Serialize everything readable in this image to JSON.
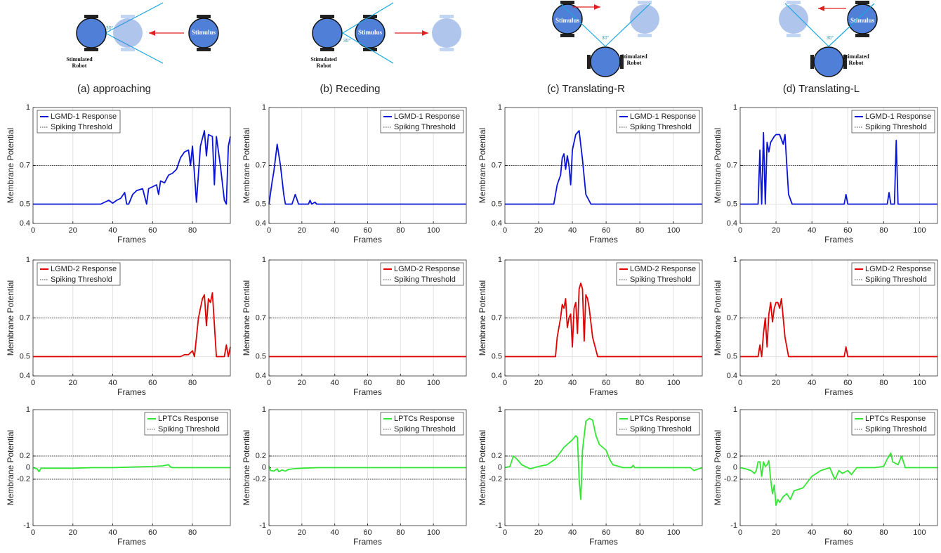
{
  "panels": [
    {
      "caption": "(a) approaching",
      "stimulus": "Stimulus",
      "robot": "Stimulated Robot",
      "angle": "30°"
    },
    {
      "caption": "(b) Receding",
      "stimulus": "Stimulus",
      "robot": "Stimulated Robot",
      "angle": "30°"
    },
    {
      "caption": "(c) Translating-R",
      "stimulus": "Stimulus",
      "robot": "Stimulated Robot",
      "angle": "30°"
    },
    {
      "caption": "(d) Translating-L",
      "stimulus": "Stimulus",
      "robot": "Stimulated Robot",
      "angle": "30°"
    }
  ],
  "chart_data": [
    {
      "type": "line",
      "x_label": "Frames",
      "y_label": "Membrane Potential",
      "xlim": [
        0,
        99
      ],
      "xticks": [
        0,
        20,
        40,
        60,
        80
      ],
      "ylim": [
        0.4,
        1
      ],
      "yticks": [
        0.4,
        0.5,
        0.7,
        1
      ],
      "grid": true,
      "legend": "upper left",
      "x": [
        0,
        34,
        36,
        38,
        40,
        42,
        44,
        46,
        47,
        48,
        50,
        52,
        55,
        57,
        58,
        60,
        62,
        63,
        64,
        66,
        68,
        70,
        72,
        74,
        76,
        78,
        79,
        80,
        82,
        84,
        86,
        87,
        88,
        90,
        91,
        92,
        94,
        96,
        97,
        98,
        99
      ],
      "series": [
        {
          "name": "LGMD-1 Response",
          "color": "#0a14d8",
          "values": [
            0.5,
            0.5,
            0.51,
            0.52,
            0.505,
            0.52,
            0.53,
            0.56,
            0.5,
            0.5,
            0.55,
            0.57,
            0.58,
            0.5,
            0.58,
            0.59,
            0.6,
            0.55,
            0.62,
            0.61,
            0.65,
            0.66,
            0.68,
            0.74,
            0.77,
            0.78,
            0.7,
            0.8,
            0.51,
            0.8,
            0.88,
            0.75,
            0.86,
            0.85,
            0.6,
            0.85,
            0.7,
            0.52,
            0.5,
            0.8,
            0.85
          ]
        }
      ],
      "threshold": {
        "name": "Spiking Threshold",
        "color": "#000000",
        "values": [
          0.7
        ]
      }
    },
    {
      "type": "line",
      "x_label": "Frames",
      "y_label": "Membrane Potential",
      "xlim": [
        0,
        120
      ],
      "xticks": [
        0,
        20,
        40,
        60,
        80,
        100
      ],
      "ylim": [
        0.4,
        1
      ],
      "yticks": [
        0.4,
        0.5,
        0.7,
        1
      ],
      "grid": true,
      "legend": "upper right",
      "x": [
        0,
        2,
        3,
        5,
        7,
        9,
        10,
        14,
        16,
        18,
        20,
        24,
        25,
        26,
        28,
        29,
        30,
        120
      ],
      "series": [
        {
          "name": "LGMD-1 Response",
          "color": "#0a14d8",
          "values": [
            0.5,
            0.62,
            0.67,
            0.81,
            0.7,
            0.55,
            0.5,
            0.5,
            0.55,
            0.5,
            0.5,
            0.5,
            0.52,
            0.5,
            0.51,
            0.5,
            0.5,
            0.5
          ]
        }
      ],
      "threshold": {
        "name": "Spiking Threshold",
        "color": "#000000",
        "values": [
          0.7
        ]
      }
    },
    {
      "type": "line",
      "x_label": "Frames",
      "y_label": "Membrane Potential",
      "xlim": [
        0,
        117
      ],
      "xticks": [
        0,
        20,
        40,
        60,
        80,
        100
      ],
      "ylim": [
        0.4,
        1
      ],
      "yticks": [
        0.4,
        0.5,
        0.7,
        1
      ],
      "grid": true,
      "legend": "upper right",
      "x": [
        0,
        29,
        31,
        33,
        34,
        35,
        36,
        37,
        38,
        39,
        40,
        41,
        42,
        44,
        46,
        48,
        51,
        117
      ],
      "series": [
        {
          "name": "LGMD-1 Response",
          "color": "#0a14d8",
          "values": [
            0.5,
            0.5,
            0.6,
            0.65,
            0.74,
            0.76,
            0.68,
            0.75,
            0.7,
            0.6,
            0.78,
            0.82,
            0.86,
            0.88,
            0.73,
            0.55,
            0.5,
            0.5
          ]
        }
      ],
      "threshold": {
        "name": "Spiking Threshold",
        "color": "#000000",
        "values": [
          0.7
        ]
      }
    },
    {
      "type": "line",
      "x_label": "Frames",
      "y_label": "Membrane Potential",
      "xlim": [
        0,
        110
      ],
      "xticks": [
        0,
        20,
        40,
        60,
        80,
        100
      ],
      "ylim": [
        0.4,
        1
      ],
      "yticks": [
        0.4,
        0.5,
        0.7,
        1
      ],
      "grid": true,
      "legend": "upper right",
      "x": [
        0,
        10,
        11,
        12,
        13,
        14,
        15,
        16,
        17,
        19,
        20,
        21,
        22,
        24,
        25,
        26,
        27,
        29,
        58,
        59,
        60,
        82,
        83,
        84,
        86,
        87,
        88,
        110
      ],
      "series": [
        {
          "name": "LGMD-1 Response",
          "color": "#0a14d8",
          "values": [
            0.5,
            0.5,
            0.78,
            0.5,
            0.87,
            0.5,
            0.82,
            0.77,
            0.82,
            0.85,
            0.86,
            0.86,
            0.86,
            0.81,
            0.86,
            0.7,
            0.55,
            0.5,
            0.5,
            0.55,
            0.5,
            0.5,
            0.56,
            0.5,
            0.5,
            0.83,
            0.5,
            0.5
          ]
        }
      ],
      "threshold": {
        "name": "Spiking Threshold",
        "color": "#000000",
        "values": [
          0.7
        ]
      }
    },
    {
      "type": "line",
      "x_label": "Frames",
      "y_label": "Membrane Potential",
      "xlim": [
        0,
        99
      ],
      "xticks": [
        0,
        20,
        40,
        60,
        80
      ],
      "ylim": [
        0.4,
        1
      ],
      "yticks": [
        0.4,
        0.5,
        0.7,
        1
      ],
      "grid": true,
      "legend": "upper left",
      "x": [
        0,
        74,
        76,
        78,
        80,
        81,
        83,
        85,
        86,
        87,
        88,
        89,
        90,
        92,
        94,
        96,
        97,
        98,
        99
      ],
      "series": [
        {
          "name": "LGMD-2 Response",
          "color": "#e00000",
          "values": [
            0.5,
            0.5,
            0.51,
            0.51,
            0.53,
            0.5,
            0.7,
            0.8,
            0.82,
            0.66,
            0.8,
            0.78,
            0.83,
            0.5,
            0.5,
            0.5,
            0.56,
            0.5,
            0.55
          ]
        }
      ],
      "threshold": {
        "name": "Spiking Threshold",
        "color": "#000000",
        "values": [
          0.7
        ]
      }
    },
    {
      "type": "line",
      "x_label": "Frames",
      "y_label": "Membrane Potential",
      "xlim": [
        0,
        120
      ],
      "xticks": [
        0,
        20,
        40,
        60,
        80,
        100
      ],
      "ylim": [
        0.4,
        1
      ],
      "yticks": [
        0.4,
        0.5,
        0.7,
        1
      ],
      "grid": true,
      "legend": "upper right",
      "x": [
        0,
        120
      ],
      "series": [
        {
          "name": "LGMD-2 Response",
          "color": "#e00000",
          "values": [
            0.5,
            0.5
          ]
        }
      ],
      "threshold": {
        "name": "Spiking Threshold",
        "color": "#000000",
        "values": [
          0.7
        ]
      }
    },
    {
      "type": "line",
      "x_label": "Frames",
      "y_label": "Membrane Potential",
      "xlim": [
        0,
        117
      ],
      "xticks": [
        0,
        20,
        40,
        60,
        80,
        100
      ],
      "ylim": [
        0.4,
        1
      ],
      "yticks": [
        0.4,
        0.5,
        0.7,
        1
      ],
      "grid": true,
      "legend": "upper right",
      "x": [
        0,
        30,
        31,
        33,
        34,
        35,
        36,
        37,
        38,
        39,
        40,
        41,
        42,
        43,
        44,
        45,
        46,
        47,
        48,
        49,
        50,
        52,
        55,
        117
      ],
      "series": [
        {
          "name": "LGMD-2 Response",
          "color": "#e00000",
          "values": [
            0.5,
            0.5,
            0.6,
            0.7,
            0.77,
            0.75,
            0.8,
            0.65,
            0.7,
            0.72,
            0.55,
            0.75,
            0.78,
            0.62,
            0.85,
            0.88,
            0.85,
            0.58,
            0.82,
            0.8,
            0.75,
            0.6,
            0.5,
            0.5
          ]
        }
      ],
      "threshold": {
        "name": "Spiking Threshold",
        "color": "#000000",
        "values": [
          0.7
        ]
      }
    },
    {
      "type": "line",
      "x_label": "Frames",
      "y_label": "Membrane Potential",
      "xlim": [
        0,
        110
      ],
      "xticks": [
        0,
        20,
        40,
        60,
        80,
        100
      ],
      "ylim": [
        0.4,
        1
      ],
      "yticks": [
        0.4,
        0.5,
        0.7,
        1
      ],
      "grid": true,
      "legend": "upper right",
      "x": [
        0,
        10,
        11,
        12,
        13,
        14,
        15,
        16,
        17,
        18,
        19,
        20,
        21,
        22,
        23,
        24,
        25,
        27,
        58,
        59,
        60,
        110
      ],
      "series": [
        {
          "name": "LGMD-2 Response",
          "color": "#e00000",
          "values": [
            0.5,
            0.5,
            0.56,
            0.5,
            0.62,
            0.7,
            0.55,
            0.72,
            0.78,
            0.68,
            0.75,
            0.78,
            0.78,
            0.75,
            0.8,
            0.7,
            0.6,
            0.5,
            0.5,
            0.55,
            0.5,
            0.5
          ]
        }
      ],
      "threshold": {
        "name": "Spiking Threshold",
        "color": "#000000",
        "values": [
          0.7
        ]
      }
    },
    {
      "type": "line",
      "x_label": "Frames",
      "y_label": "Membrane Potential",
      "xlim": [
        0,
        99
      ],
      "xticks": [
        0,
        20,
        40,
        60,
        80
      ],
      "ylim": [
        -1,
        1
      ],
      "yticks": [
        -1,
        -0.2,
        0,
        0.2,
        1
      ],
      "grid": true,
      "legend": "upper right",
      "x": [
        0,
        2,
        3,
        4,
        10,
        20,
        30,
        40,
        50,
        60,
        65,
        68,
        69,
        70,
        80,
        99
      ],
      "series": [
        {
          "name": "LPTCs Response",
          "color": "#33e633",
          "values": [
            0,
            -0.02,
            -0.07,
            -0.01,
            -0.01,
            -0.01,
            0,
            0,
            0.01,
            0.02,
            0.03,
            0.05,
            0.01,
            0,
            0,
            0
          ]
        }
      ],
      "threshold": {
        "name": "Spiking Threshold",
        "color": "#000000",
        "values": [
          0.2,
          -0.2
        ]
      }
    },
    {
      "type": "line",
      "x_label": "Frames",
      "y_label": "Membrane Potential",
      "xlim": [
        0,
        120
      ],
      "xticks": [
        0,
        20,
        40,
        60,
        80,
        100
      ],
      "ylim": [
        -1,
        1
      ],
      "yticks": [
        -1,
        -0.2,
        0,
        0.2,
        1
      ],
      "grid": true,
      "legend": "upper right",
      "x": [
        0,
        1,
        3,
        5,
        6,
        8,
        10,
        12,
        15,
        20,
        30,
        40,
        60,
        120
      ],
      "series": [
        {
          "name": "LPTCs Response",
          "color": "#33e633",
          "values": [
            0.03,
            -0.05,
            -0.06,
            -0.02,
            -0.07,
            -0.04,
            -0.06,
            -0.03,
            -0.02,
            -0.01,
            0,
            0,
            0,
            0
          ]
        }
      ],
      "threshold": {
        "name": "Spiking Threshold",
        "color": "#000000",
        "values": [
          0.2,
          -0.2
        ]
      }
    },
    {
      "type": "line",
      "x_label": "Frames",
      "y_label": "Membrane Potential",
      "xlim": [
        0,
        117
      ],
      "xticks": [
        0,
        20,
        40,
        60,
        80,
        100
      ],
      "ylim": [
        -1,
        1
      ],
      "yticks": [
        -1,
        -0.2,
        0,
        0.2,
        1
      ],
      "grid": true,
      "legend": "upper right",
      "x": [
        0,
        3,
        5,
        7,
        10,
        15,
        20,
        25,
        30,
        35,
        40,
        42,
        43,
        44,
        45,
        46,
        48,
        50,
        52,
        54,
        56,
        58,
        60,
        62,
        64,
        70,
        75,
        76,
        77,
        110,
        112,
        115,
        117
      ],
      "series": [
        {
          "name": "LPTCs Response",
          "color": "#33e633",
          "values": [
            0,
            0.02,
            0.2,
            0.15,
            0.05,
            -0.02,
            0.02,
            0.05,
            0.15,
            0.35,
            0.48,
            0.55,
            0.52,
            -0.2,
            -0.55,
            0.3,
            0.8,
            0.85,
            0.82,
            0.55,
            0.4,
            0.35,
            0.3,
            0.15,
            0.05,
            0,
            0,
            0.04,
            0,
            0,
            -0.05,
            -0.02,
            0
          ]
        }
      ],
      "threshold": {
        "name": "Spiking Threshold",
        "color": "#000000",
        "values": [
          0.2,
          -0.2
        ]
      }
    },
    {
      "type": "line",
      "x_label": "Frames",
      "y_label": "Membrane Potential",
      "xlim": [
        0,
        110
      ],
      "xticks": [
        0,
        20,
        40,
        60,
        80,
        100
      ],
      "ylim": [
        -1,
        1
      ],
      "yticks": [
        -1,
        -0.2,
        0,
        0.2,
        1
      ],
      "grid": true,
      "legend": "upper right",
      "x": [
        0,
        3,
        6,
        8,
        9,
        10,
        11,
        12,
        13,
        14,
        15,
        16,
        17,
        18,
        19,
        20,
        21,
        22,
        24,
        26,
        28,
        30,
        35,
        40,
        45,
        50,
        52,
        53,
        55,
        57,
        60,
        62,
        65,
        70,
        75,
        80,
        82,
        84,
        85,
        88,
        90,
        92,
        95,
        110
      ],
      "series": [
        {
          "name": "LPTCs Response",
          "color": "#33e633",
          "values": [
            0,
            -0.02,
            -0.05,
            -0.1,
            -0.05,
            0.1,
            0.1,
            -0.15,
            0.1,
            0.02,
            0.05,
            0.12,
            -0.2,
            -0.45,
            -0.3,
            -0.65,
            -0.55,
            -0.6,
            -0.5,
            -0.45,
            -0.55,
            -0.4,
            -0.35,
            -0.15,
            -0.05,
            0,
            -0.15,
            -0.2,
            -0.05,
            -0.1,
            -0.05,
            -0.12,
            0,
            0,
            0,
            0.02,
            0.15,
            0.25,
            0.1,
            0.05,
            0.2,
            0,
            0,
            0
          ]
        }
      ],
      "threshold": {
        "name": "Spiking Threshold",
        "color": "#000000",
        "values": [
          0.2,
          -0.2
        ]
      }
    }
  ]
}
